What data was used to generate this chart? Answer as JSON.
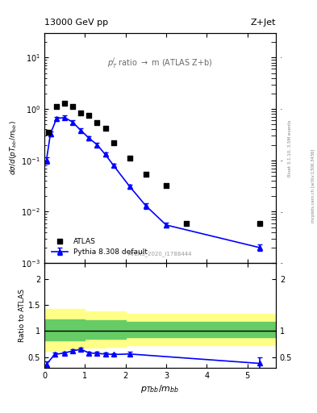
{
  "title_left": "13000 GeV pp",
  "title_right": "Z+Jet",
  "annotation": "p_{T}^{j} ratio → m (ATLAS Z+b)",
  "watermark": "ATLAS_2020_I1788444",
  "right_label": "Rivet 3.1.10, 3.5M events",
  "ylabel_main": "dσ/d(pT_{bb}/m_{bb})",
  "ylabel_ratio": "Ratio to ATLAS",
  "xlabel": "p_{Tbb}/m_{bb}",
  "xlim": [
    0,
    5.7
  ],
  "ylim_main": [
    0.001,
    30
  ],
  "ylim_ratio": [
    0.3,
    2.3
  ],
  "atlas_x": [
    0.1,
    0.3,
    0.5,
    0.7,
    0.9,
    1.1,
    1.3,
    1.5,
    1.7,
    2.1,
    2.5,
    3.0,
    3.5,
    5.3
  ],
  "atlas_y": [
    0.35,
    1.1,
    1.3,
    1.1,
    0.85,
    0.75,
    0.55,
    0.42,
    0.22,
    0.11,
    0.054,
    0.032,
    0.006,
    0.006
  ],
  "pythia_x": [
    0.05,
    0.15,
    0.3,
    0.5,
    0.7,
    0.9,
    1.1,
    1.3,
    1.5,
    1.7,
    2.1,
    2.5,
    3.0,
    5.3
  ],
  "pythia_y": [
    0.1,
    0.33,
    0.65,
    0.68,
    0.55,
    0.38,
    0.27,
    0.2,
    0.13,
    0.08,
    0.031,
    0.013,
    0.0055,
    0.002
  ],
  "pythia_yerr": [
    0.015,
    0.04,
    0.06,
    0.06,
    0.05,
    0.035,
    0.025,
    0.018,
    0.012,
    0.007,
    0.003,
    0.0015,
    0.0006,
    0.0003
  ],
  "ratio_pythia_x": [
    0.05,
    0.25,
    0.5,
    0.7,
    0.9,
    1.1,
    1.3,
    1.5,
    1.7,
    2.1,
    5.3
  ],
  "ratio_pythia_y": [
    0.36,
    0.55,
    0.58,
    0.62,
    0.65,
    0.58,
    0.57,
    0.56,
    0.55,
    0.56,
    0.38
  ],
  "ratio_pythia_yerr": [
    0.06,
    0.04,
    0.03,
    0.03,
    0.03,
    0.03,
    0.03,
    0.03,
    0.03,
    0.04,
    0.12
  ],
  "green_band_x": [
    0.0,
    0.5,
    1.0,
    1.5,
    2.0,
    3.0,
    5.7
  ],
  "green_band_lo": [
    0.82,
    0.82,
    0.85,
    0.85,
    0.88,
    0.88,
    0.88
  ],
  "green_band_hi": [
    1.22,
    1.22,
    1.2,
    1.2,
    1.18,
    1.18,
    1.18
  ],
  "yellow_band_x": [
    0.0,
    0.5,
    1.0,
    1.5,
    2.0,
    3.0,
    5.7
  ],
  "yellow_band_lo": [
    0.62,
    0.65,
    0.68,
    0.7,
    0.73,
    0.73,
    0.73
  ],
  "yellow_band_hi": [
    1.42,
    1.42,
    1.38,
    1.38,
    1.33,
    1.33,
    1.33
  ],
  "atlas_color": "black",
  "pythia_color": "blue",
  "green_color": "#66cc66",
  "yellow_color": "#ffff88"
}
